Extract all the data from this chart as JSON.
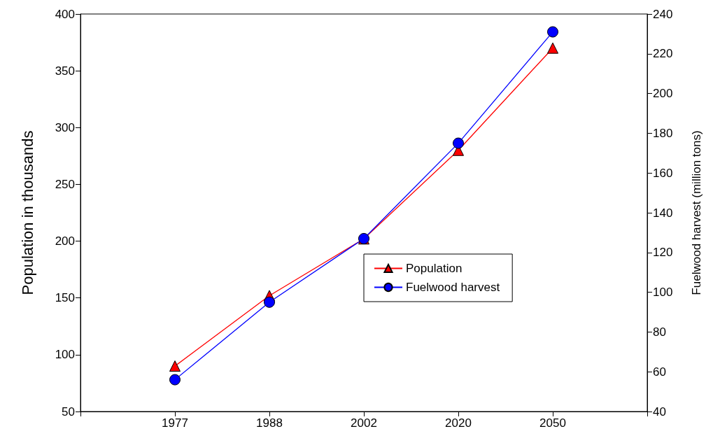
{
  "chart_data": {
    "type": "line",
    "categories": [
      "1977",
      "1988",
      "2002",
      "2020",
      "2050"
    ],
    "ylabel": "Population in thousands",
    "y2label": "Fuelwood harvest (million tons)",
    "ylim": [
      50,
      400
    ],
    "yticks": [
      50,
      100,
      150,
      200,
      250,
      300,
      350,
      400
    ],
    "y2lim": [
      40,
      240
    ],
    "y2ticks": [
      40,
      60,
      80,
      100,
      120,
      140,
      160,
      180,
      200,
      220,
      240
    ],
    "grid": false,
    "legend": "right",
    "line_style": "solid",
    "series": [
      {
        "name": "Population",
        "color": "#ff0000",
        "marker": "triangle",
        "values": [
          90,
          152,
          202,
          280,
          370
        ]
      },
      {
        "name": "Fuelwood harvest",
        "color": "#0000ff",
        "marker": "circle",
        "axis": "y2",
        "values": [
          56,
          95,
          127,
          175,
          231
        ]
      }
    ]
  }
}
